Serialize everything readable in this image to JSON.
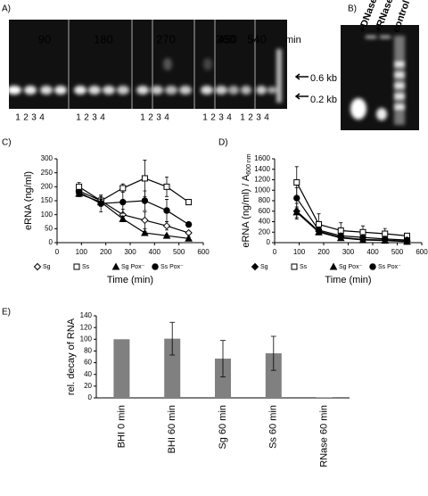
{
  "panels": {
    "gel_a": {
      "label": "A)",
      "times": [
        "90",
        "180",
        "270",
        "360",
        "450",
        "540"
      ],
      "unit": "min",
      "lanes": [
        "1",
        "2",
        "3",
        "4"
      ],
      "markers": [
        "0.6 kb",
        "0.2 kb"
      ]
    },
    "gel_b": {
      "label": "B)",
      "lanes": [
        "+DNase",
        "+RNase",
        "control"
      ]
    },
    "labels": [
      "C)",
      "D)",
      "E)"
    ]
  },
  "chart_data": [
    {
      "type": "line",
      "x_label": "Time (min)",
      "y_label": "eRNA (ng/ml)",
      "x": [
        90,
        180,
        270,
        360,
        450,
        540
      ],
      "xlim": [
        0,
        600
      ],
      "xticks": [
        0,
        100,
        200,
        300,
        400,
        500,
        600
      ],
      "ylim": [
        0,
        300
      ],
      "yticks": [
        0,
        50,
        100,
        150,
        200,
        250,
        300
      ],
      "series": [
        {
          "name": "Sg",
          "color": "#000000",
          "marker": "diamond",
          "filled": false,
          "values": [
            185,
            150,
            100,
            80,
            60,
            35
          ],
          "errors": [
            20,
            20,
            20,
            30,
            15,
            5
          ]
        },
        {
          "name": "Ss",
          "color": "#000000",
          "marker": "square",
          "filled": false,
          "values": [
            200,
            150,
            195,
            230,
            200,
            145
          ],
          "errors": [
            15,
            15,
            15,
            65,
            35,
            5
          ]
        },
        {
          "name": "Sg Pox⁻",
          "color": "#000000",
          "marker": "triangle",
          "filled": true,
          "values": [
            175,
            145,
            85,
            35,
            25,
            15
          ],
          "errors": [
            10,
            10,
            10,
            5,
            5,
            5
          ]
        },
        {
          "name": "Ss Pox⁻",
          "color": "#000000",
          "marker": "circle",
          "filled": true,
          "values": [
            180,
            140,
            145,
            150,
            115,
            65
          ],
          "errors": [
            10,
            30,
            40,
            35,
            40,
            5
          ]
        }
      ]
    },
    {
      "type": "line",
      "x_label": "Time (min)",
      "y_label": "eRNA (ng/ml) / A",
      "y_label_sub": "600 nm",
      "x": [
        90,
        180,
        270,
        360,
        450,
        540
      ],
      "xlim": [
        0,
        600
      ],
      "xticks": [
        0,
        100,
        200,
        300,
        400,
        500,
        600
      ],
      "ylim": [
        0,
        1600
      ],
      "yticks": [
        0,
        200,
        400,
        600,
        800,
        1000,
        1200,
        1400,
        1600
      ],
      "series": [
        {
          "name": "Sg",
          "color": "#000000",
          "marker": "diamond",
          "filled": true,
          "values": [
            600,
            220,
            100,
            60,
            50,
            30
          ],
          "errors": [
            150,
            60,
            40,
            30,
            20,
            10
          ]
        },
        {
          "name": "Ss",
          "color": "#000000",
          "marker": "square",
          "filled": false,
          "values": [
            1150,
            350,
            230,
            200,
            170,
            130
          ],
          "errors": [
            300,
            200,
            150,
            120,
            100,
            30
          ]
        },
        {
          "name": "Sg Pox⁻",
          "color": "#000000",
          "marker": "triangle",
          "filled": true,
          "values": [
            580,
            200,
            90,
            50,
            40,
            20
          ],
          "errors": [
            100,
            40,
            30,
            20,
            15,
            10
          ]
        },
        {
          "name": "Ss Pox⁻",
          "color": "#000000",
          "marker": "circle",
          "filled": true,
          "values": [
            850,
            240,
            130,
            100,
            70,
            50
          ],
          "errors": [
            200,
            60,
            40,
            30,
            20,
            15
          ]
        }
      ]
    },
    {
      "type": "bar",
      "y_label": "rel. decay of RNA",
      "categories": [
        "BHI 0 min",
        "BHI 60 min",
        "Sg 60 min",
        "Ss 60 min",
        "RNase 60 min"
      ],
      "values": [
        100,
        101,
        67,
        76,
        1
      ],
      "errors": [
        null,
        28,
        31,
        29,
        null
      ],
      "color": "#808080",
      "ylim": [
        0,
        140
      ],
      "yticks": [
        0,
        20,
        40,
        60,
        80,
        100,
        120,
        140
      ]
    }
  ]
}
